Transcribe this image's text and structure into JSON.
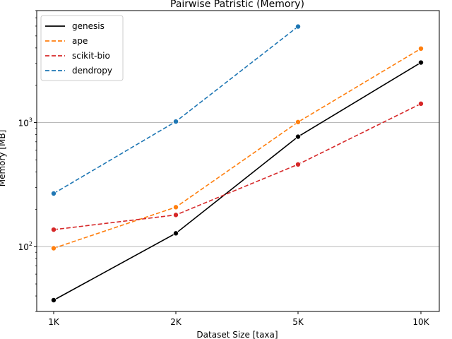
{
  "chart_data": {
    "type": "line",
    "title": "Pairwise Patristic  (Memory)",
    "xlabel": "Dataset Size  [taxa]",
    "ylabel": "Memory  [MB]",
    "categories": [
      "1K",
      "2K",
      "5K",
      "10K"
    ],
    "y_scale": "log",
    "ylim": [
      30,
      8000
    ],
    "y_ticks": [
      {
        "value": 100,
        "label": "10",
        "sup": "2"
      },
      {
        "value": 1000,
        "label": "10",
        "sup": "3"
      }
    ],
    "grid": "horizontal at major ticks",
    "legend_position": "top-left",
    "series": [
      {
        "name": "genesis",
        "color": "#000000",
        "dash": "solid",
        "values": [
          37,
          128,
          770,
          3050
        ]
      },
      {
        "name": "ape",
        "color": "#ff7f0e",
        "dash": "dashed",
        "values": [
          97,
          208,
          1010,
          3950
        ]
      },
      {
        "name": "scikit-bio",
        "color": "#d62728",
        "dash": "dashed",
        "values": [
          137,
          180,
          460,
          1420
        ]
      },
      {
        "name": "dendropy",
        "color": "#1f77b4",
        "dash": "dashed",
        "values": [
          268,
          1020,
          5950,
          null
        ]
      }
    ]
  }
}
